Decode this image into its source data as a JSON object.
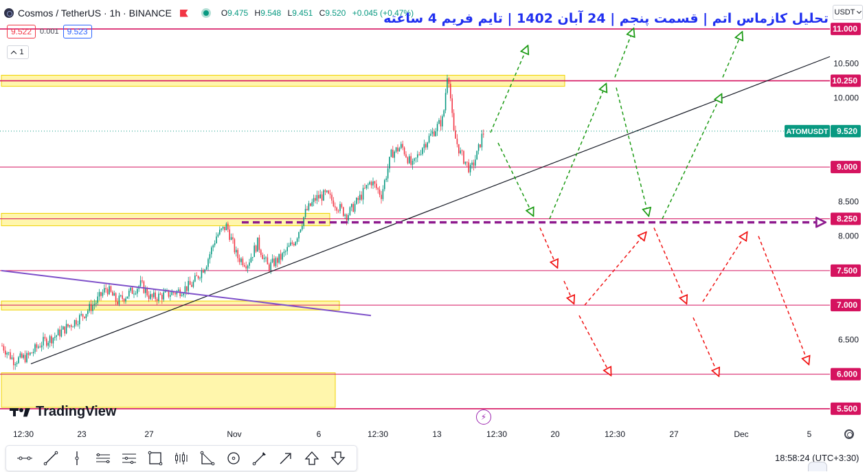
{
  "header": {
    "symbol": "Cosmos / TetherUS · 1h · BINANCE",
    "open_label": "O",
    "open": "9.475",
    "high_label": "H",
    "high": "9.548",
    "low_label": "L",
    "low": "9.451",
    "close_label": "C",
    "close": "9.520",
    "change": "+0.045 (+0.47%)"
  },
  "bidask": {
    "bid": "9.522",
    "spread": "0.001",
    "ask": "9.523"
  },
  "collapse_label": "1",
  "currency": "USDT",
  "title": "تحلیل کازماس اتم | قسمت پنجم | 24 آبان 1402 | تایم فریم 4 ساعته",
  "brand": "TradingView",
  "clock": "18:58:24",
  "timezone": "(UTC+3:30)",
  "colors": {
    "level_line": "#d5135f",
    "zone_fill": "#fff59d",
    "zone_stroke": "#f0d200",
    "bull": "#089981",
    "bear": "#f23645",
    "up_path": "#1a9a12",
    "down_path": "#f01212",
    "dashed_support": "#8e1a8e",
    "trend_line": "#131722",
    "falling_line": "#7d4fc9"
  },
  "toolbar_icons": [
    "horizontal-ray-icon",
    "trend-line-icon",
    "vertical-line-icon",
    "parallel-channel-icon",
    "fib-retracement-icon",
    "rectangle-icon",
    "long-position-icon",
    "triangle-pattern-icon",
    "circle-icon",
    "brush-icon",
    "arrow-marker-icon",
    "arrow-up-icon",
    "arrow-down-icon"
  ],
  "chart_data": {
    "type": "candlestick",
    "symbol": "ATOMUSDT",
    "last_price": "9.520",
    "ylim": [
      5.31,
      11.36
    ],
    "y_tick_labels": [
      "10.500",
      "10.000",
      "8.500",
      "8.000",
      "6.500"
    ],
    "y_ticks": [
      10.5,
      10.0,
      8.5,
      8.0,
      6.5
    ],
    "x_tick_labels": [
      "12:30",
      "23",
      "27",
      "Nov",
      "6",
      "12:30",
      "13",
      "12:30",
      "20",
      "12:30",
      "27",
      "Dec",
      "5"
    ],
    "levels": [
      {
        "value": 11.0,
        "label": "11.000"
      },
      {
        "value": 10.25,
        "label": "10.250"
      },
      {
        "value": 9.0,
        "label": "9.000"
      },
      {
        "value": 8.25,
        "label": "8.250"
      },
      {
        "value": 7.5,
        "label": "7.500"
      },
      {
        "value": 7.0,
        "label": "7.000"
      },
      {
        "value": 6.0,
        "label": "6.000"
      },
      {
        "value": 5.5,
        "label": "5.500"
      }
    ],
    "zones": [
      {
        "from": 10.17,
        "to": 10.33
      },
      {
        "from": 8.15,
        "to": 8.33
      },
      {
        "from": 6.93,
        "to": 7.06
      },
      {
        "from": 5.52,
        "to": 6.02
      }
    ],
    "price_path": [
      [
        0,
        6.45
      ],
      [
        20,
        6.2
      ],
      [
        40,
        6.25
      ],
      [
        60,
        6.45
      ],
      [
        80,
        6.55
      ],
      [
        100,
        6.7
      ],
      [
        120,
        6.85
      ],
      [
        140,
        7.05
      ],
      [
        155,
        7.25
      ],
      [
        170,
        7.05
      ],
      [
        185,
        7.15
      ],
      [
        205,
        7.3
      ],
      [
        220,
        7.1
      ],
      [
        240,
        7.15
      ],
      [
        260,
        7.2
      ],
      [
        280,
        7.3
      ],
      [
        300,
        7.6
      ],
      [
        315,
        8.0
      ],
      [
        330,
        8.15
      ],
      [
        345,
        7.7
      ],
      [
        360,
        7.6
      ],
      [
        375,
        7.9
      ],
      [
        390,
        7.55
      ],
      [
        410,
        7.7
      ],
      [
        430,
        7.95
      ],
      [
        445,
        8.35
      ],
      [
        460,
        8.55
      ],
      [
        475,
        8.6
      ],
      [
        490,
        8.45
      ],
      [
        505,
        8.3
      ],
      [
        520,
        8.5
      ],
      [
        540,
        8.8
      ],
      [
        555,
        8.6
      ],
      [
        570,
        9.2
      ],
      [
        585,
        9.3
      ],
      [
        600,
        9.0
      ],
      [
        615,
        9.3
      ],
      [
        630,
        9.5
      ],
      [
        645,
        9.7
      ],
      [
        652,
        10.45
      ],
      [
        660,
        9.5
      ],
      [
        670,
        9.2
      ],
      [
        685,
        8.95
      ],
      [
        695,
        9.2
      ],
      [
        703,
        9.5
      ]
    ],
    "annotations": {
      "trend_line": [
        [
          45,
          6.15
        ],
        [
          1208,
          10.6
        ]
      ],
      "falling_line": [
        [
          2,
          7.5
        ],
        [
          540,
          6.85
        ]
      ],
      "support_dashed": [
        [
          352,
          8.2
        ],
        [
          1195,
          8.2
        ]
      ],
      "up_paths": [
        [
          [
            714,
            9.5
          ],
          [
            768,
            10.75
          ]
        ],
        [
          [
            725,
            9.35
          ],
          [
            776,
            8.3
          ]
        ],
        [
          [
            800,
            8.25
          ],
          [
            882,
            10.2
          ]
        ],
        [
          [
            895,
            10.3
          ],
          [
            922,
            11.0
          ]
        ],
        [
          [
            897,
            10.15
          ],
          [
            944,
            8.3
          ]
        ],
        [
          [
            964,
            8.25
          ],
          [
            1050,
            10.05
          ]
        ],
        [
          [
            1052,
            10.3
          ],
          [
            1080,
            10.95
          ]
        ]
      ],
      "down_paths": [
        [
          [
            786,
            8.12
          ],
          [
            811,
            7.55
          ]
        ],
        [
          [
            821,
            7.35
          ],
          [
            835,
            7.03
          ]
        ],
        [
          [
            851,
            7.0
          ],
          [
            940,
            8.05
          ]
        ],
        [
          [
            843,
            6.85
          ],
          [
            889,
            5.99
          ]
        ],
        [
          [
            952,
            8.12
          ],
          [
            999,
            7.03
          ]
        ],
        [
          [
            1023,
            7.05
          ],
          [
            1087,
            8.05
          ]
        ],
        [
          [
            1009,
            6.82
          ],
          [
            1046,
            5.98
          ]
        ],
        [
          [
            1104,
            8.0
          ],
          [
            1177,
            6.15
          ]
        ]
      ]
    }
  }
}
